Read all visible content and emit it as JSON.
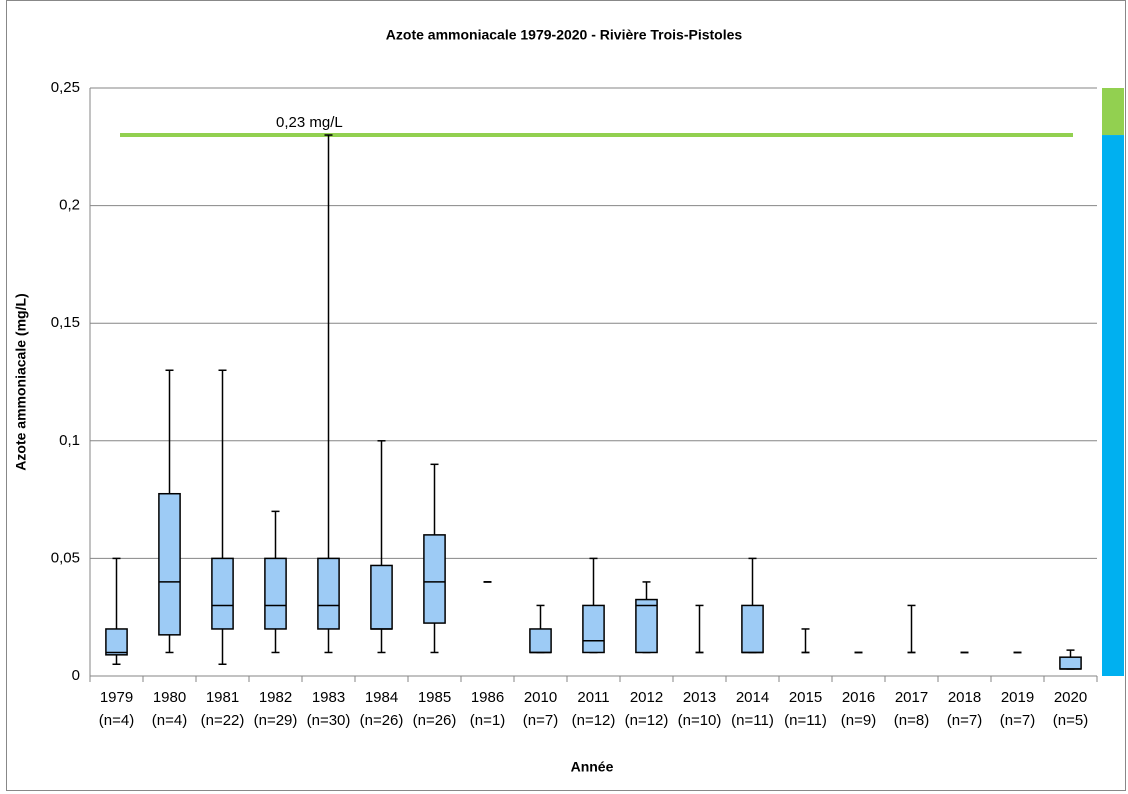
{
  "chart_data": {
    "type": "box",
    "title": "Azote ammoniacale 1979-2020 - Rivière Trois-Pistoles",
    "y_label": "Azote ammoniacale (mg/L)",
    "x_label": "Année",
    "categories": [
      "1979",
      "1980",
      "1981",
      "1982",
      "1983",
      "1984",
      "1985",
      "1986",
      "2010",
      "2011",
      "2012",
      "2013",
      "2014",
      "2015",
      "2016",
      "2017",
      "2018",
      "2019",
      "2020"
    ],
    "n_labels": [
      "(n=4)",
      "(n=4)",
      "(n=22)",
      "(n=29)",
      "(n=30)",
      "(n=26)",
      "(n=26)",
      "(n=1)",
      "(n=7)",
      "(n=12)",
      "(n=12)",
      "(n=10)",
      "(n=11)",
      "(n=11)",
      "(n=9)",
      "(n=8)",
      "(n=7)",
      "(n=7)",
      "(n=5)"
    ],
    "min": [
      0.005,
      0.01,
      0.005,
      0.01,
      0.01,
      0.01,
      0.01,
      0.04,
      0.01,
      0.01,
      0.01,
      0.01,
      0.01,
      0.01,
      0.01,
      0.01,
      0.01,
      0.01,
      0.003
    ],
    "q1": [
      0.009,
      0.0175,
      0.02,
      0.02,
      0.02,
      0.02,
      0.0225,
      0.04,
      0.01,
      0.01,
      0.01,
      0.01,
      0.01,
      0.01,
      0.01,
      0.01,
      0.01,
      0.01,
      0.003
    ],
    "median": [
      0.01,
      0.04,
      0.03,
      0.03,
      0.03,
      0.02,
      0.04,
      0.04,
      0.01,
      0.015,
      0.03,
      0.01,
      0.01,
      0.01,
      0.01,
      0.01,
      0.01,
      0.01,
      0.003
    ],
    "q3": [
      0.02,
      0.0775,
      0.05,
      0.05,
      0.05,
      0.047,
      0.06,
      0.04,
      0.02,
      0.03,
      0.0325,
      0.01,
      0.03,
      0.01,
      0.01,
      0.01,
      0.01,
      0.01,
      0.008
    ],
    "max": [
      0.05,
      0.13,
      0.13,
      0.07,
      0.23,
      0.1,
      0.09,
      0.04,
      0.03,
      0.05,
      0.04,
      0.03,
      0.05,
      0.02,
      0.01,
      0.03,
      0.01,
      0.01,
      0.011
    ],
    "color": "#9dcbf5",
    "ylim": [
      0,
      0.25
    ],
    "yticks": [
      0,
      {
        "value": 0.05,
        "label": "0,05"
      },
      {
        "value": 0.1,
        "label": "0,1"
      },
      {
        "value": 0.15,
        "label": "0,15"
      },
      {
        "value": 0.2,
        "label": "0,2"
      },
      {
        "value": 0.25,
        "label": "0,25"
      }
    ],
    "grid": true,
    "threshold": {
      "value": 0.23,
      "label": "0,23 mg/L",
      "color": "#92d050"
    },
    "bands": [
      {
        "from": 0.23,
        "to": 0.25,
        "color": "#92d050"
      },
      {
        "from": 0,
        "to": 0.23,
        "color": "#00b0f0"
      }
    ]
  }
}
